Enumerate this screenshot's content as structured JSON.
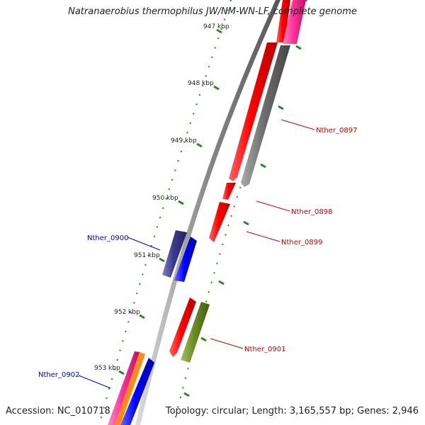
{
  "title": "Natranaerobius thermophilus JW/NM-WN-LF, complete genome",
  "footer": {
    "accession": "Accession: NC_010718",
    "topology": "Topology: circular; Length: 3,165,557 bp; Genes: 2,946"
  },
  "scale_labels": [
    "947 kbp",
    "948 kbp",
    "949 kbp",
    "950 kbp",
    "951 kbp",
    "952 kbp",
    "953 kbp"
  ],
  "gene_labels": [
    {
      "text": "Nther_0897",
      "color": "#cc0000"
    },
    {
      "text": "Nther_0898",
      "color": "#cc0000"
    },
    {
      "text": "Nther_0899",
      "color": "#cc0000"
    },
    {
      "text": "Nther_0900",
      "color": "#0000cc"
    },
    {
      "text": "Nther_0901",
      "color": "#cc0000"
    },
    {
      "text": "Nther_0902",
      "color": "#0000cc"
    }
  ],
  "colors": {
    "backbone": "#888888",
    "forward_cds": "#ff0000",
    "reverse_cds": "#0000ff",
    "gray_feature": "#666666",
    "magenta_feature": "#ff3399",
    "olive_feature": "#6b8e23",
    "navy_feature": "#3b3b8c",
    "tick_green": "#228b22"
  }
}
